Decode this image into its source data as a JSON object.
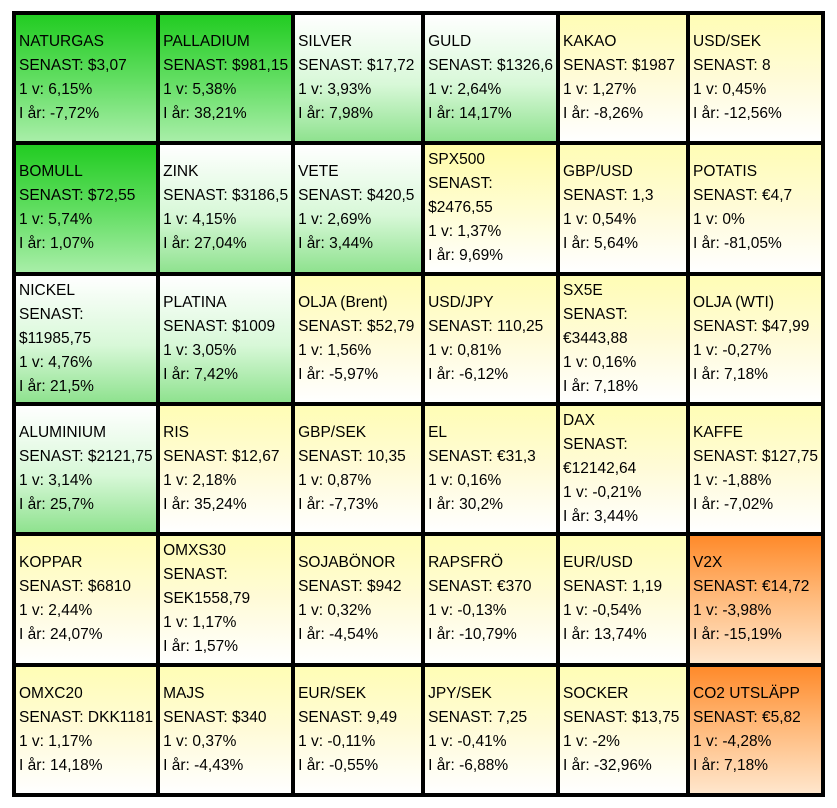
{
  "labels": {
    "last": "SENAST:",
    "week": "1 v:",
    "year": "I år:"
  },
  "cells": [
    {
      "name": "NATURGAS",
      "last": "$3,07",
      "week": "6,15%",
      "year": "-7,72%",
      "style": "g-strong"
    },
    {
      "name": "PALLADIUM",
      "last": "$981,15",
      "week": "5,38%",
      "year": "38,21%",
      "style": "g-strong"
    },
    {
      "name": "SILVER",
      "last": "$17,72",
      "week": "3,93%",
      "year": "7,98%",
      "style": "g-light"
    },
    {
      "name": "GULD",
      "last": "$1326,6",
      "week": "2,64%",
      "year": "14,17%",
      "style": "g-light"
    },
    {
      "name": "KAKAO",
      "last": "$1987",
      "week": "1,27%",
      "year": "-8,26%",
      "style": "y"
    },
    {
      "name": "USD/SEK",
      "last": "8",
      "week": "0,45%",
      "year": "-12,56%",
      "style": "y"
    },
    {
      "name": "BOMULL",
      "last": "$72,55",
      "week": "5,74%",
      "year": "1,07%",
      "style": "g-strong"
    },
    {
      "name": "ZINK",
      "last": "$3186,5",
      "week": "4,15%",
      "year": "27,04%",
      "style": "g-light"
    },
    {
      "name": "VETE",
      "last": "$420,5",
      "week": "2,69%",
      "year": "3,44%",
      "style": "g-light"
    },
    {
      "name": "SPX500",
      "last": "$2476,55",
      "week": "1,37%",
      "year": "9,69%",
      "style": "y2",
      "wrap": true
    },
    {
      "name": "GBP/USD",
      "last": "1,3",
      "week": "0,54%",
      "year": "5,64%",
      "style": "y"
    },
    {
      "name": "POTATIS",
      "last": "€4,7",
      "week": "0%",
      "year": "-81,05%",
      "style": "y"
    },
    {
      "name": "NICKEL",
      "last": "$11985,75",
      "week": "4,76%",
      "year": "21,5%",
      "style": "g-light",
      "wrap": true
    },
    {
      "name": "PLATINA",
      "last": "$1009",
      "week": "3,05%",
      "year": "7,42%",
      "style": "g-light"
    },
    {
      "name": "OLJA (Brent)",
      "last": "$52,79",
      "week": "1,56%",
      "year": "-5,97%",
      "style": "y"
    },
    {
      "name": "USD/JPY",
      "last": "110,25",
      "week": "0,81%",
      "year": "-6,12%",
      "style": "y"
    },
    {
      "name": "SX5E",
      "last": "€3443,88",
      "week": "0,16%",
      "year": "7,18%",
      "style": "y",
      "wrap": true
    },
    {
      "name": "OLJA (WTI)",
      "last": "$47,99",
      "week": "-0,27%",
      "year": "7,18%",
      "style": "y"
    },
    {
      "name": "ALUMINIUM",
      "last": "$2121,75",
      "week": "3,14%",
      "year": "25,7%",
      "style": "g-light"
    },
    {
      "name": "RIS",
      "last": "$12,67",
      "week": "2,18%",
      "year": "35,24%",
      "style": "y"
    },
    {
      "name": "GBP/SEK",
      "last": "10,35",
      "week": "0,87%",
      "year": "-7,73%",
      "style": "y"
    },
    {
      "name": "EL",
      "last": "€31,3",
      "week": "0,16%",
      "year": "30,2%",
      "style": "y"
    },
    {
      "name": "DAX",
      "last": "€12142,64",
      "week": "-0,21%",
      "year": "3,44%",
      "style": "y",
      "wrap": true
    },
    {
      "name": "KAFFE",
      "last": "$127,75",
      "week": "-1,88%",
      "year": "-7,02%",
      "style": "y"
    },
    {
      "name": "KOPPAR",
      "last": "$6810",
      "week": "2,44%",
      "year": "24,07%",
      "style": "y"
    },
    {
      "name": "OMXS30",
      "last": "SEK1558,79",
      "week": "1,17%",
      "year": "1,57%",
      "style": "y",
      "wrap": true
    },
    {
      "name": "SOJABÖNOR",
      "last": "$942",
      "week": "0,32%",
      "year": "-4,54%",
      "style": "y"
    },
    {
      "name": "RAPSFRÖ",
      "last": "€370",
      "week": "-0,13%",
      "year": "-10,79%",
      "style": "y"
    },
    {
      "name": "EUR/USD",
      "last": "1,19",
      "week": "-0,54%",
      "year": "13,74%",
      "style": "y"
    },
    {
      "name": "V2X",
      "last": "€14,72",
      "week": "-3,98%",
      "year": "-15,19%",
      "style": "o"
    },
    {
      "name": "OMXC20",
      "last": "DKK1181",
      "week": "1,17%",
      "year": "14,18%",
      "style": "y"
    },
    {
      "name": "MAJS",
      "last": "$340",
      "week": "0,37%",
      "year": "-4,43%",
      "style": "y"
    },
    {
      "name": "EUR/SEK",
      "last": "9,49",
      "week": "-0,11%",
      "year": "-0,55%",
      "style": "y"
    },
    {
      "name": "JPY/SEK",
      "last": "7,25",
      "week": "-0,41%",
      "year": "-6,88%",
      "style": "y"
    },
    {
      "name": "SOCKER",
      "last": "$13,75",
      "week": "-2%",
      "year": "-32,96%",
      "style": "y"
    },
    {
      "name": "CO2 UTSLÄPP",
      "last": "€5,82",
      "week": "-4,28%",
      "year": "7,18%",
      "style": "o"
    }
  ]
}
